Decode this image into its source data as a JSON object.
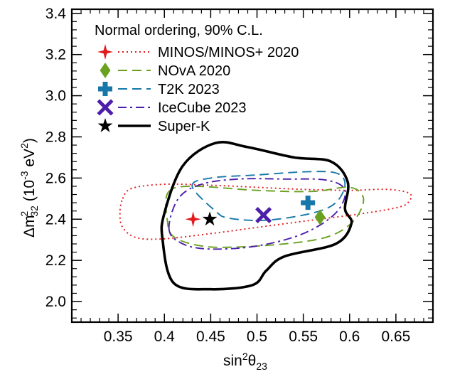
{
  "chart_data": {
    "type": "contour",
    "title": "Normal ordering, 90% C.L.",
    "xlabel": {
      "base": "sin",
      "sup": "2",
      "mid": "θ",
      "sub": "23"
    },
    "ylabel": {
      "base": "Δm",
      "sup": "2",
      "sub": "32",
      "unit_open": " (10",
      "unit_exp": "-3",
      "unit_close": " eV",
      "unit_sup": "2",
      "unit_end": ")"
    },
    "xlim": [
      0.3,
      0.69
    ],
    "ylim": [
      1.9,
      3.42
    ],
    "xticks": [
      0.35,
      0.4,
      0.45,
      0.5,
      0.55,
      0.6,
      0.65
    ],
    "xtick_labels": [
      "0.35",
      "0.4",
      "0.45",
      "0.5",
      "0.55",
      "0.6",
      "0.65"
    ],
    "yticks": [
      2.0,
      2.2,
      2.4,
      2.6,
      2.8,
      3.0,
      3.2,
      3.4
    ],
    "ytick_labels": [
      "2.0",
      "2.2",
      "2.4",
      "2.6",
      "2.8",
      "3.0",
      "3.2",
      "3.4"
    ],
    "series": [
      {
        "name": "MINOS/MINOS+ 2020",
        "color": "#e31a1c",
        "dash": "dotted",
        "marker": "star4",
        "best_fit": [
          0.431,
          2.4
        ],
        "contours": [
          [
            [
              0.355,
              2.5
            ],
            [
              0.365,
              2.55
            ],
            [
              0.4,
              2.57
            ],
            [
              0.45,
              2.565
            ],
            [
              0.5,
              2.555
            ],
            [
              0.55,
              2.545
            ],
            [
              0.6,
              2.54
            ],
            [
              0.64,
              2.545
            ],
            [
              0.665,
              2.525
            ],
            [
              0.663,
              2.48
            ],
            [
              0.65,
              2.455
            ],
            [
              0.61,
              2.425
            ],
            [
              0.55,
              2.39
            ],
            [
              0.5,
              2.36
            ],
            [
              0.45,
              2.33
            ],
            [
              0.4,
              2.305
            ],
            [
              0.37,
              2.31
            ],
            [
              0.355,
              2.36
            ],
            [
              0.352,
              2.43
            ],
            [
              0.355,
              2.5
            ]
          ]
        ]
      },
      {
        "name": "NOvA 2020",
        "color": "#6aa121",
        "dash": "dashed",
        "marker": "diamond",
        "best_fit": [
          0.568,
          2.41
        ],
        "contours": [
          [
            [
              0.404,
              2.53
            ],
            [
              0.43,
              2.56
            ],
            [
              0.5,
              2.54
            ],
            [
              0.56,
              2.535
            ],
            [
              0.6,
              2.555
            ],
            [
              0.615,
              2.5
            ],
            [
              0.605,
              2.395
            ],
            [
              0.58,
              2.32
            ],
            [
              0.54,
              2.285
            ],
            [
              0.48,
              2.265
            ],
            [
              0.44,
              2.27
            ],
            [
              0.41,
              2.315
            ],
            [
              0.403,
              2.4
            ],
            [
              0.404,
              2.53
            ]
          ]
        ]
      },
      {
        "name": "T2K 2023",
        "color": "#1777a9",
        "dash": "dashed",
        "marker": "plus",
        "best_fit": [
          0.555,
          2.48
        ],
        "contours": [
          [
            [
              0.43,
              2.56
            ],
            [
              0.45,
              2.6
            ],
            [
              0.5,
              2.615
            ],
            [
              0.55,
              2.63
            ],
            [
              0.585,
              2.625
            ],
            [
              0.595,
              2.57
            ],
            [
              0.585,
              2.48
            ],
            [
              0.56,
              2.43
            ],
            [
              0.51,
              2.395
            ],
            [
              0.47,
              2.405
            ],
            [
              0.455,
              2.44
            ],
            [
              0.43,
              2.56
            ]
          ]
        ]
      },
      {
        "name": "IceCube 2023",
        "color": "#4b1fa9",
        "dash": "dashdot",
        "marker": "x",
        "best_fit": [
          0.507,
          2.42
        ],
        "contours": [
          [
            [
              0.405,
              2.35
            ],
            [
              0.415,
              2.5
            ],
            [
              0.44,
              2.57
            ],
            [
              0.48,
              2.595
            ],
            [
              0.53,
              2.595
            ],
            [
              0.575,
              2.59
            ],
            [
              0.595,
              2.54
            ],
            [
              0.585,
              2.43
            ],
            [
              0.55,
              2.33
            ],
            [
              0.5,
              2.27
            ],
            [
              0.45,
              2.255
            ],
            [
              0.42,
              2.28
            ],
            [
              0.405,
              2.35
            ]
          ]
        ]
      },
      {
        "name": "Super-K",
        "color": "#000000",
        "dash": "solid",
        "marker": "star5",
        "best_fit": [
          0.449,
          2.4
        ],
        "contours": [
          [
            [
              0.4,
              2.43
            ],
            [
              0.42,
              2.66
            ],
            [
              0.455,
              2.77
            ],
            [
              0.49,
              2.75
            ],
            [
              0.54,
              2.7
            ],
            [
              0.58,
              2.68
            ],
            [
              0.598,
              2.58
            ],
            [
              0.595,
              2.45
            ],
            [
              0.602,
              2.38
            ],
            [
              0.585,
              2.28
            ],
            [
              0.53,
              2.22
            ],
            [
              0.51,
              2.15
            ],
            [
              0.495,
              2.08
            ],
            [
              0.45,
              2.06
            ],
            [
              0.41,
              2.09
            ],
            [
              0.398,
              2.3
            ],
            [
              0.4,
              2.43
            ]
          ]
        ]
      }
    ]
  }
}
